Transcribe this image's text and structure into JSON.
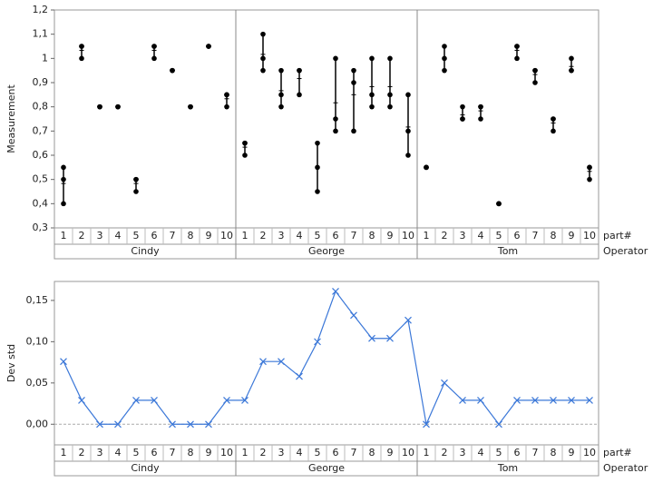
{
  "chart_data": [
    {
      "type": "variability",
      "y_label": "Measurement",
      "x_label": "part#",
      "group_label": "Operator",
      "operators": [
        "Cindy",
        "George",
        "Tom"
      ],
      "parts": [
        "1",
        "2",
        "3",
        "4",
        "5",
        "6",
        "7",
        "8",
        "9",
        "10"
      ],
      "ylim": [
        0.3,
        1.2
      ],
      "yticks": [
        {
          "value": 0.3,
          "label": "0,3"
        },
        {
          "value": 0.4,
          "label": "0,4"
        },
        {
          "value": 0.5,
          "label": "0,5"
        },
        {
          "value": 0.6,
          "label": "0,6"
        },
        {
          "value": 0.7,
          "label": "0,7"
        },
        {
          "value": 0.8,
          "label": "0,8"
        },
        {
          "value": 0.9,
          "label": "0,9"
        },
        {
          "value": 1,
          "label": "1"
        },
        {
          "value": 1.1,
          "label": "1,1"
        },
        {
          "value": 1.2,
          "label": "1,2"
        }
      ],
      "color": "#000000",
      "measurements": [
        [
          [
            0.4,
            0.5,
            0.55
          ],
          [
            1.0,
            1.05,
            1.05
          ],
          [
            0.8,
            0.8,
            0.8
          ],
          [
            0.8,
            0.8,
            0.8
          ],
          [
            0.45,
            0.5,
            0.5
          ],
          [
            1.0,
            1.05,
            1.05
          ],
          [
            0.95,
            0.95,
            0.95
          ],
          [
            0.8,
            0.8,
            0.8
          ],
          [
            1.05,
            1.05,
            1.05
          ],
          [
            0.8,
            0.85,
            0.85
          ]
        ],
        [
          [
            0.6,
            0.65,
            0.65
          ],
          [
            0.95,
            1.0,
            1.1
          ],
          [
            0.8,
            0.85,
            0.95
          ],
          [
            0.85,
            0.95,
            0.95
          ],
          [
            0.45,
            0.55,
            0.65
          ],
          [
            0.7,
            0.75,
            1.0
          ],
          [
            0.7,
            0.9,
            0.95
          ],
          [
            0.8,
            0.85,
            1.0
          ],
          [
            0.8,
            0.85,
            1.0
          ],
          [
            0.6,
            0.7,
            0.85
          ]
        ],
        [
          [
            0.55,
            0.55,
            0.55
          ],
          [
            0.95,
            1.0,
            1.05
          ],
          [
            0.75,
            0.75,
            0.8
          ],
          [
            0.75,
            0.8,
            0.8
          ],
          [
            0.4,
            0.4,
            0.4
          ],
          [
            1.0,
            1.05,
            1.05
          ],
          [
            0.9,
            0.95,
            0.95
          ],
          [
            0.7,
            0.75,
            0.75
          ],
          [
            0.95,
            0.95,
            1.0
          ],
          [
            0.5,
            0.55,
            0.55
          ]
        ]
      ]
    },
    {
      "type": "line",
      "y_label": "Dev std",
      "x_label": "part#",
      "group_label": "Operator",
      "operators": [
        "Cindy",
        "George",
        "Tom"
      ],
      "parts": [
        "1",
        "2",
        "3",
        "4",
        "5",
        "6",
        "7",
        "8",
        "9",
        "10"
      ],
      "ylim": [
        -0.025,
        0.173
      ],
      "yticks": [
        {
          "value": 0,
          "label": "0,00"
        },
        {
          "value": 0.05,
          "label": "0,05"
        },
        {
          "value": 0.1,
          "label": "0,10"
        },
        {
          "value": 0.15,
          "label": "0,15"
        }
      ],
      "color": "#3c78d8",
      "values": [
        [
          0.076,
          0.029,
          0,
          0,
          0.029,
          0.029,
          0,
          0,
          0,
          0.029
        ],
        [
          0.029,
          0.076,
          0.076,
          0.058,
          0.1,
          0.161,
          0.132,
          0.104,
          0.104,
          0.126
        ],
        [
          0,
          0.05,
          0.029,
          0.029,
          0,
          0.029,
          0.029,
          0.029,
          0.029,
          0.029
        ]
      ]
    }
  ]
}
